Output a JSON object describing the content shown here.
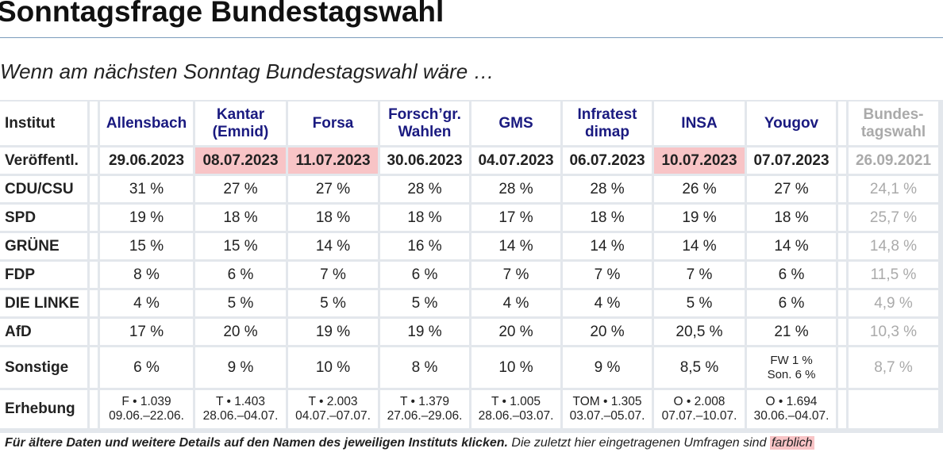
{
  "header": {
    "title": "Sonntagsfrage Bundestagswahl",
    "subtitle": "Wenn am nächsten Sonntag Bundestagswahl wäre …"
  },
  "table": {
    "columns": [
      "Institut",
      "Allensbach",
      "Kantar\n(Emnid)",
      "Forsa",
      "Forsch’gr.\nWahlen",
      "GMS",
      "Infratest\ndimap",
      "INSA",
      "Yougov",
      "Bundes-\ntagswahl"
    ],
    "rows": [
      [
        "Veröffentl.",
        "29.06.2023",
        "08.07.2023",
        "11.07.2023",
        "30.06.2023",
        "04.07.2023",
        "06.07.2023",
        "10.07.2023",
        "07.07.2023",
        "26.09.2021"
      ],
      [
        "CDU/CSU",
        "31 %",
        "27 %",
        "27 %",
        "28 %",
        "28 %",
        "28 %",
        "26 %",
        "27 %",
        "24,1 %"
      ],
      [
        "SPD",
        "19 %",
        "18 %",
        "18 %",
        "18 %",
        "17 %",
        "18 %",
        "19 %",
        "18 %",
        "25,7 %"
      ],
      [
        "GRÜNE",
        "15 %",
        "15 %",
        "14 %",
        "16 %",
        "14 %",
        "14 %",
        "14 %",
        "14 %",
        "14,8 %"
      ],
      [
        "FDP",
        "8 %",
        "6 %",
        "7 %",
        "6 %",
        "7 %",
        "7 %",
        "7 %",
        "6 %",
        "11,5 %"
      ],
      [
        "DIE LINKE",
        "4 %",
        "5 %",
        "5 %",
        "5 %",
        "4 %",
        "4 %",
        "5 %",
        "6 %",
        "4,9 %"
      ],
      [
        "AfD",
        "17 %",
        "20 %",
        "19 %",
        "19 %",
        "20 %",
        "20 %",
        "20,5 %",
        "21 %",
        "10,3 %"
      ],
      [
        "Sonstige",
        "6 %",
        "9 %",
        "10 %",
        "8 %",
        "10 %",
        "9 %",
        "8,5 %",
        "FW 1 %\nSon. 6 %",
        "8,7 %"
      ],
      [
        "Erhebung",
        "F • 1.039\n09.06.–22.06.",
        "T • 1.403\n28.06.–04.07.",
        "T • 2.003\n04.07.–07.07.",
        "T • 1.379\n27.06.–29.06.",
        "T • 1.005\n28.06.–03.07.",
        "TOM • 1.305\n03.07.–05.07.",
        "O • 2.008\n07.07.–10.07.",
        "O • 1.694\n30.06.–04.07.",
        null
      ]
    ],
    "highlight_color": "#f8c4c6",
    "highlighted": [
      [
        0,
        2
      ],
      [
        0,
        3
      ],
      [
        0,
        7
      ]
    ]
  },
  "footer": {
    "bold_text": "Für ältere Daten und weitere Details auf den Namen des jeweiligen Instituts klicken.",
    "text": "Die zuletzt hier eingetragenen Umfragen sind",
    "highlighted_text": "farblich"
  }
}
